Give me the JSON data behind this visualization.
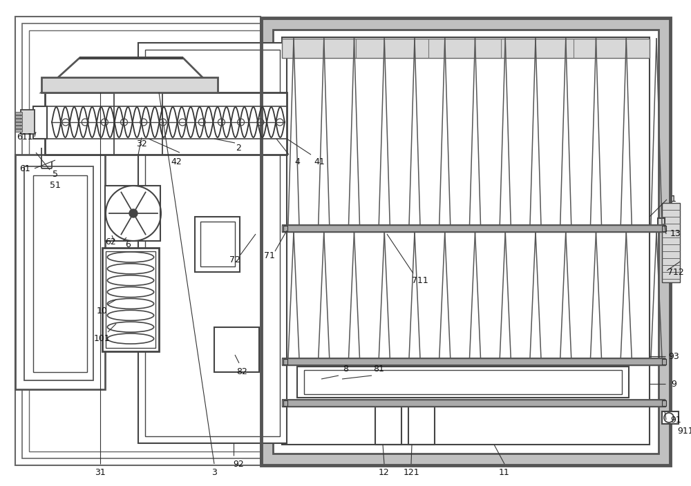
{
  "bg": "#ffffff",
  "lc": "#444444",
  "lc_dark": "#222222",
  "gray_fill": "#c0c0c0",
  "light_gray": "#d8d8d8",
  "med_gray": "#aaaaaa",
  "fig_w": 10.0,
  "fig_h": 7.04,
  "dpi": 100
}
